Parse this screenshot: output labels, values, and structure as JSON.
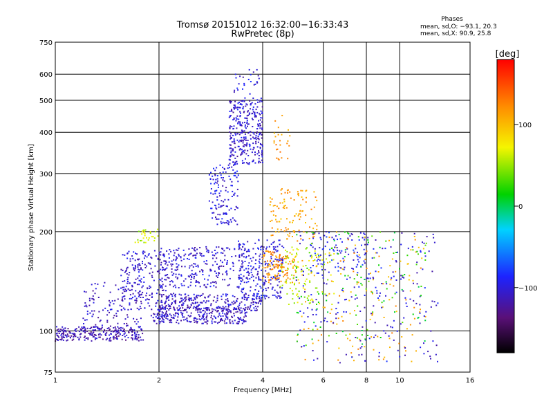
{
  "chart_data": {
    "type": "scatter",
    "title": "Tromsø 20151012 16:32:00−16:33:43",
    "subtitle": "RwPretec (8p)",
    "xlabel": "Frequency [MHz]",
    "ylabel": "Stationary phase Virtual Height [km]",
    "x_scale": "log",
    "y_scale": "log",
    "xlim": [
      1,
      16
    ],
    "ylim": [
      75,
      750
    ],
    "x_ticks": [
      "1",
      "2",
      "4",
      "6",
      "8",
      "10",
      "16"
    ],
    "y_ticks": [
      "75",
      "100",
      "200",
      "300",
      "400",
      "500",
      "600",
      "750"
    ],
    "grid": true,
    "stats": {
      "title": "Phases",
      "line_o": "mean, sd,O: −93.1, 20.3",
      "line_x": "mean, sd,X:  90.9, 25.8"
    },
    "colorbar": {
      "label": "[deg]",
      "range": [
        -180,
        180
      ],
      "ticks": [
        "100",
        "0",
        "−100"
      ],
      "tick_values": [
        100,
        0,
        -100
      ]
    },
    "clusters": [
      {
        "fmin": 1.0,
        "fmax": 1.8,
        "hmin": 93,
        "hmax": 103,
        "phase": -115,
        "count": 260
      },
      {
        "fmin": 1.2,
        "fmax": 1.8,
        "hmin": 100,
        "hmax": 140,
        "phase": -110,
        "count": 120
      },
      {
        "fmin": 1.55,
        "fmax": 2.1,
        "hmin": 115,
        "hmax": 175,
        "phase": -105,
        "count": 200
      },
      {
        "fmin": 1.7,
        "fmax": 2.0,
        "hmin": 185,
        "hmax": 205,
        "phase": 60,
        "count": 30
      },
      {
        "fmin": 1.9,
        "fmax": 3.6,
        "hmin": 105,
        "hmax": 118,
        "phase": -108,
        "count": 280
      },
      {
        "fmin": 2.0,
        "fmax": 4.0,
        "hmin": 115,
        "hmax": 130,
        "phase": -108,
        "count": 260
      },
      {
        "fmin": 2.0,
        "fmax": 3.5,
        "hmin": 135,
        "hmax": 180,
        "phase": -105,
        "count": 260
      },
      {
        "fmin": 2.8,
        "fmax": 3.4,
        "hmin": 210,
        "hmax": 320,
        "phase": -100,
        "count": 140
      },
      {
        "fmin": 3.2,
        "fmax": 4.0,
        "hmin": 320,
        "hmax": 500,
        "phase": -105,
        "count": 320
      },
      {
        "fmin": 3.3,
        "fmax": 4.0,
        "hmin": 500,
        "hmax": 620,
        "phase": -100,
        "count": 30
      },
      {
        "fmin": 3.4,
        "fmax": 4.6,
        "hmin": 125,
        "hmax": 190,
        "phase": -100,
        "count": 240
      },
      {
        "fmin": 4.0,
        "fmax": 5.0,
        "hmin": 140,
        "hmax": 175,
        "phase": 120,
        "count": 120
      },
      {
        "fmin": 4.2,
        "fmax": 5.8,
        "hmin": 190,
        "hmax": 270,
        "phase": 110,
        "count": 110
      },
      {
        "fmin": 4.3,
        "fmax": 4.8,
        "hmin": 330,
        "hmax": 450,
        "phase": 115,
        "count": 25
      },
      {
        "fmin": 4.5,
        "fmax": 6.5,
        "hmin": 120,
        "hmax": 180,
        "phase": 60,
        "count": 110
      },
      {
        "fmin": 5.5,
        "fmax": 8.0,
        "hmin": 150,
        "hmax": 200,
        "phase": -90,
        "count": 80
      },
      {
        "fmin": 5.0,
        "fmax": 12.0,
        "hmin": 80,
        "hmax": 200,
        "phase": 110,
        "count": 140
      },
      {
        "fmin": 5.0,
        "fmax": 13.0,
        "hmin": 80,
        "hmax": 200,
        "phase": -100,
        "count": 220
      },
      {
        "fmin": 5.0,
        "fmax": 12.0,
        "hmin": 90,
        "hmax": 200,
        "phase": 20,
        "count": 110
      }
    ]
  }
}
